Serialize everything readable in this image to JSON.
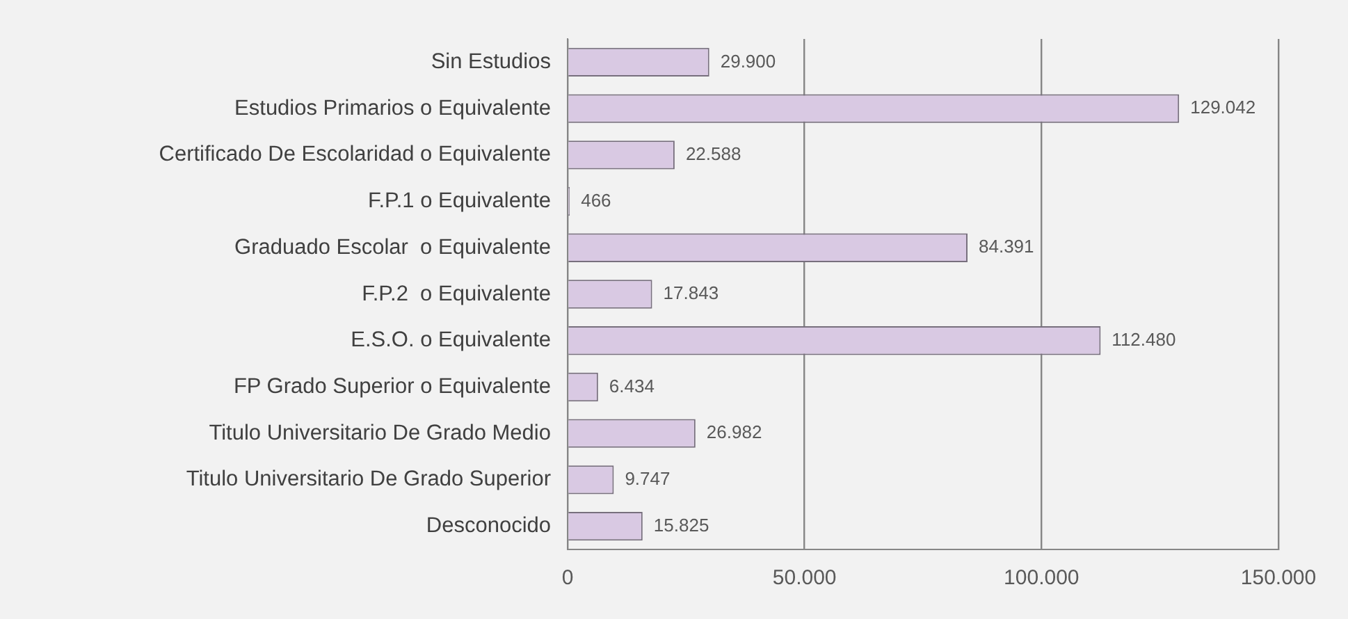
{
  "chart_data": {
    "type": "bar",
    "orientation": "horizontal",
    "categories": [
      "Sin Estudios",
      "Estudios Primarios o Equivalente",
      "Certificado De Escolaridad o Equivalente",
      "F.P.1 o Equivalente",
      "Graduado Escolar  o Equivalente",
      "F.P.2  o Equivalente",
      "E.S.O. o Equivalente",
      "FP Grado Superior o Equivalente",
      "Titulo Universitario De Grado Medio",
      "Titulo Universitario De Grado Superior",
      "Desconocido"
    ],
    "values": [
      29900,
      129042,
      22588,
      466,
      84391,
      17843,
      112480,
      6434,
      26982,
      9747,
      15825
    ],
    "value_labels": [
      "29.900",
      "129.042",
      "22.588",
      "466",
      "84.391",
      "17.843",
      "112.480",
      "6.434",
      "26.982",
      "9.747",
      "15.825"
    ],
    "color": "#d9c9e3",
    "xlim": [
      0,
      150000
    ],
    "xticks": [
      0,
      {
        "value": 50000,
        "label": "50.000"
      },
      {
        "value": 100000,
        "label": "100.000"
      },
      {
        "value": 150000,
        "label": "150.000"
      }
    ],
    "grid": "x",
    "legend": false
  }
}
